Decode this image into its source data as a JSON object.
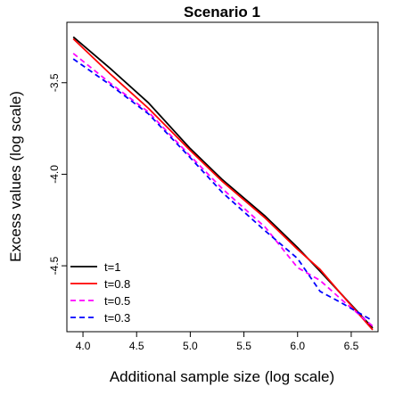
{
  "chart_data": {
    "type": "line",
    "title": "Scenario 1",
    "xlabel": "Additional sample size (log scale)",
    "ylabel": "Excess values (log scale)",
    "xlim": [
      3.85,
      6.75
    ],
    "ylim": [
      -4.86,
      -3.17
    ],
    "x_ticks": [
      "4.0",
      "4.5",
      "5.0",
      "5.5",
      "6.0",
      "6.5"
    ],
    "x_tick_values": [
      4.0,
      4.5,
      5.0,
      5.5,
      6.0,
      6.5
    ],
    "y_ticks": [
      "-3.5",
      "-4.0",
      "-4.5"
    ],
    "y_tick_values": [
      -3.5,
      -4.0,
      -4.5
    ],
    "grid": false,
    "legend_position": "bottom-left",
    "series": [
      {
        "name": "t=1",
        "color": "#000000",
        "dash": "solid",
        "x": [
          3.91,
          4.25,
          4.61,
          5.0,
          5.3,
          5.7,
          6.0,
          6.21,
          6.4,
          6.7
        ],
        "y": [
          -3.25,
          -3.42,
          -3.61,
          -3.86,
          -4.03,
          -4.23,
          -4.4,
          -4.53,
          -4.65,
          -4.84
        ]
      },
      {
        "name": "t=0.8",
        "color": "#ff0000",
        "dash": "solid",
        "x": [
          3.91,
          4.25,
          4.61,
          5.0,
          5.3,
          5.7,
          6.0,
          6.21,
          6.4,
          6.7
        ],
        "y": [
          -3.26,
          -3.45,
          -3.64,
          -3.87,
          -4.04,
          -4.24,
          -4.41,
          -4.52,
          -4.65,
          -4.85
        ]
      },
      {
        "name": "t=0.5",
        "color": "#ff00ff",
        "dash": "dashed",
        "x": [
          3.91,
          4.25,
          4.61,
          5.0,
          5.3,
          5.7,
          6.0,
          6.21,
          6.4,
          6.7
        ],
        "y": [
          -3.34,
          -3.5,
          -3.66,
          -3.9,
          -4.08,
          -4.29,
          -4.51,
          -4.58,
          -4.68,
          -4.83
        ]
      },
      {
        "name": "t=0.3",
        "color": "#0000ff",
        "dash": "dashed",
        "x": [
          3.91,
          4.25,
          4.61,
          5.0,
          5.3,
          5.7,
          6.0,
          6.21,
          6.4,
          6.7
        ],
        "y": [
          -3.37,
          -3.51,
          -3.67,
          -3.91,
          -4.1,
          -4.31,
          -4.46,
          -4.64,
          -4.7,
          -4.8
        ]
      }
    ]
  }
}
